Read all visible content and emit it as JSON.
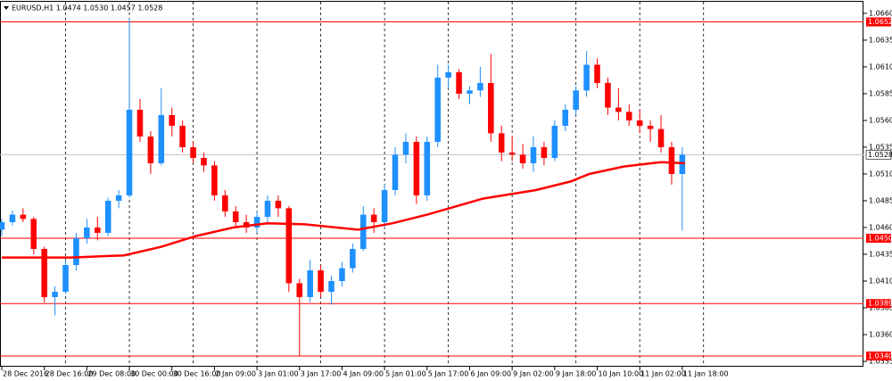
{
  "chart_data": {
    "type": "candlestick",
    "title": "EURUSD,H1  1.0474 1.0530 1.0457 1.0528",
    "x": [
      0,
      4,
      8,
      12,
      16,
      20,
      24,
      28,
      32,
      36,
      40,
      44,
      48,
      52,
      56,
      60,
      64,
      68,
      72,
      76,
      80,
      84,
      88,
      92,
      96,
      100,
      104,
      108,
      112,
      116,
      120,
      124,
      128,
      132,
      136,
      140,
      144,
      148,
      152,
      156,
      160,
      164,
      168,
      172,
      176,
      180,
      184,
      188,
      192,
      196,
      200,
      204,
      208,
      212,
      216,
      220,
      224,
      228,
      232,
      236,
      240,
      244,
      248,
      252,
      256
    ],
    "open": [
      1.0458,
      1.0465,
      1.0472,
      1.0468,
      1.044,
      1.0395,
      1.04,
      1.0425,
      1.045,
      1.046,
      1.0455,
      1.0485,
      1.049,
      1.057,
      1.0545,
      1.052,
      1.0565,
      1.0555,
      1.0535,
      1.0525,
      1.0518,
      1.049,
      1.0475,
      1.0465,
      1.046,
      1.047,
      1.0485,
      1.0478,
      1.0408,
      1.0395,
      1.042,
      1.04,
      1.041,
      1.0422,
      1.044,
      1.0472,
      1.0465,
      1.0495,
      1.0528,
      1.054,
      1.049,
      1.054,
      1.06,
      1.0605,
      1.0585,
      1.0588,
      1.0595,
      1.0548,
      1.053,
      1.0528,
      1.052,
      1.0535,
      1.0525,
      1.0555,
      1.057,
      1.0588,
      1.0612,
      1.0595,
      1.0572,
      1.0568,
      1.056,
      1.0555,
      1.0552,
      1.0535,
      1.051
    ],
    "high": [
      1.0468,
      1.0476,
      1.0478,
      1.047,
      1.0442,
      1.0405,
      1.043,
      1.0455,
      1.0468,
      1.047,
      1.0488,
      1.0495,
      1.0655,
      1.058,
      1.055,
      1.059,
      1.0572,
      1.056,
      1.054,
      1.053,
      1.0522,
      1.0495,
      1.048,
      1.0472,
      1.0475,
      1.049,
      1.049,
      1.048,
      1.0412,
      1.043,
      1.0425,
      1.0415,
      1.0428,
      1.0445,
      1.048,
      1.0478,
      1.05,
      1.0535,
      1.0548,
      1.0545,
      1.0545,
      1.0612,
      1.0612,
      1.0608,
      1.0592,
      1.061,
      1.0622,
      1.0555,
      1.0545,
      1.0538,
      1.0545,
      1.054,
      1.056,
      1.0575,
      1.0592,
      1.0625,
      1.0618,
      1.06,
      1.059,
      1.0575,
      1.057,
      1.056,
      1.0565,
      1.054,
      1.0535
    ],
    "low": [
      1.0452,
      1.0462,
      1.0465,
      1.0435,
      1.039,
      1.0378,
      1.0398,
      1.042,
      1.0445,
      1.0448,
      1.0452,
      1.0478,
      1.0488,
      1.054,
      1.051,
      1.0518,
      1.0545,
      1.053,
      1.052,
      1.0512,
      1.0485,
      1.047,
      1.046,
      1.0455,
      1.0455,
      1.0465,
      1.047,
      1.04,
      1.034,
      1.039,
      1.0395,
      1.0388,
      1.0405,
      1.0418,
      1.0438,
      1.0455,
      1.046,
      1.049,
      1.052,
      1.0482,
      1.0485,
      1.0535,
      1.059,
      1.058,
      1.0575,
      1.0582,
      1.054,
      1.0522,
      1.0522,
      1.0515,
      1.0512,
      1.0518,
      1.0522,
      1.055,
      1.0565,
      1.0582,
      1.059,
      1.0565,
      1.056,
      1.0555,
      1.0548,
      1.054,
      1.053,
      1.05,
      1.0457
    ],
    "close": [
      1.0465,
      1.0472,
      1.0468,
      1.044,
      1.0395,
      1.04,
      1.0425,
      1.045,
      1.046,
      1.0455,
      1.0485,
      1.049,
      1.057,
      1.0545,
      1.052,
      1.0565,
      1.0555,
      1.0535,
      1.0525,
      1.0518,
      1.049,
      1.0475,
      1.0465,
      1.046,
      1.047,
      1.0485,
      1.0478,
      1.0408,
      1.0395,
      1.042,
      1.04,
      1.041,
      1.0422,
      1.044,
      1.0472,
      1.0465,
      1.0495,
      1.0528,
      1.054,
      1.049,
      1.054,
      1.06,
      1.0605,
      1.0585,
      1.0588,
      1.0595,
      1.0548,
      1.053,
      1.0528,
      1.052,
      1.0535,
      1.0525,
      1.0555,
      1.057,
      1.0588,
      1.0612,
      1.0595,
      1.0572,
      1.0568,
      1.056,
      1.0555,
      1.0552,
      1.0535,
      1.051,
      1.0528
    ],
    "up_color": "#1e90ff",
    "down_color": "#ff0000",
    "moving_average": {
      "color": "#ff0000",
      "x": [
        0,
        26,
        46,
        60,
        73,
        87,
        100,
        114,
        134,
        147,
        160,
        181,
        201,
        214,
        221,
        234,
        248,
        257
      ],
      "values": [
        1.0432,
        1.0432,
        1.0434,
        1.0442,
        1.0452,
        1.046,
        1.0464,
        1.0463,
        1.0458,
        1.0464,
        1.0472,
        1.0487,
        1.0495,
        1.0503,
        1.051,
        1.0517,
        1.0521,
        1.052
      ]
    },
    "xlim": [
      -0.67,
      324.16
    ],
    "ylim": [
      1.033,
      1.06708
    ],
    "xticks": [
      {
        "value": 0,
        "label": "28 Dec 2016"
      },
      {
        "value": 16,
        "label": "28 Dec 16:00"
      },
      {
        "value": 32,
        "label": "29 Dec 08:00"
      },
      {
        "value": 48,
        "label": "30 Dec 00:00"
      },
      {
        "value": 64,
        "label": "30 Dec 16:00"
      },
      {
        "value": 80,
        "label": "2 Jan 09:00"
      },
      {
        "value": 96,
        "label": "3 Jan 01:00"
      },
      {
        "value": 112,
        "label": "3 Jan 17:00"
      },
      {
        "value": 128,
        "label": "4 Jan 09:00"
      },
      {
        "value": 144,
        "label": "5 Jan 01:00"
      },
      {
        "value": 160,
        "label": "5 Jan 17:00"
      },
      {
        "value": 176,
        "label": "6 Jan 09:00"
      },
      {
        "value": 192,
        "label": "9 Jan 02:00"
      },
      {
        "value": 208,
        "label": "9 Jan 18:00"
      },
      {
        "value": 224,
        "label": "10 Jan 10:00"
      },
      {
        "value": 240,
        "label": "11 Jan 02:00"
      },
      {
        "value": 256,
        "label": "11 Jan 18:00"
      }
    ],
    "grid_x": [
      24,
      48,
      72,
      96,
      120,
      144,
      168,
      192,
      216,
      240,
      264
    ],
    "yticks": [
      {
        "value": 1.066,
        "label": "1.0660"
      },
      1.0635,
      {
        "value": 1.061,
        "label": "1.0610"
      },
      1.0585,
      {
        "value": 1.056,
        "label": "1.0560"
      },
      1.0535,
      {
        "value": 1.051,
        "label": "1.0510"
      },
      1.0485,
      {
        "value": 1.046,
        "label": "1.0460"
      },
      1.0435,
      {
        "value": 1.041,
        "label": "1.0410"
      },
      1.0385,
      {
        "value": 1.036,
        "label": "1.0360"
      },
      1.0335
    ],
    "levels": [
      1.0652,
      {
        "value": 1.045,
        "label": "1.0450"
      },
      1.0389,
      {
        "value": 1.034,
        "label": "1.0340"
      }
    ],
    "level_color": "#ff0000",
    "current_price": 1.0528
  }
}
